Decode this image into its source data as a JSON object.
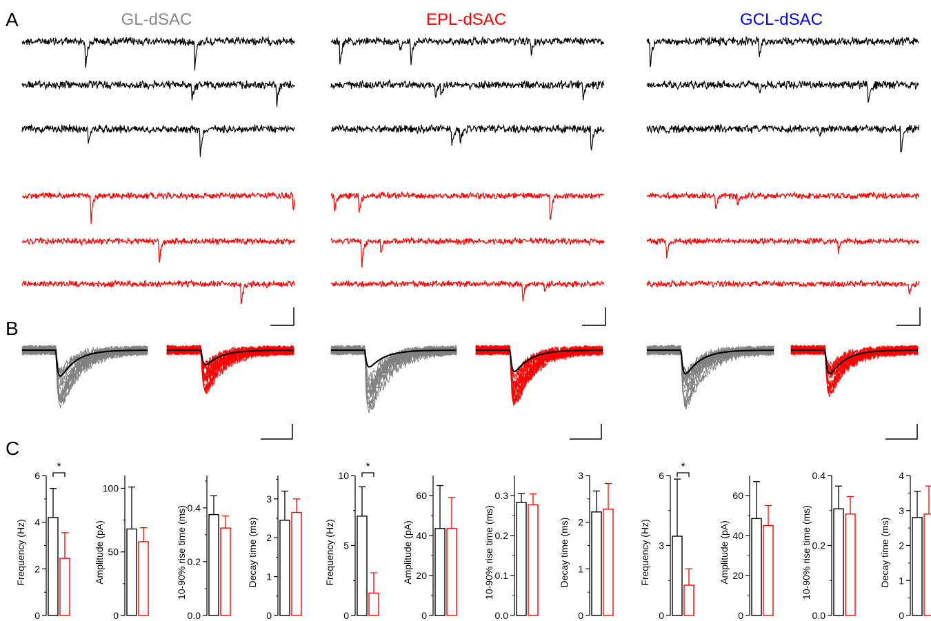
{
  "panels": {
    "a": "A",
    "b": "B",
    "c": "C"
  },
  "colors": {
    "control": "#000000",
    "treated": "#ff0000",
    "overlay": "#808080"
  },
  "columns": [
    {
      "title": "GL-dSAC",
      "title_color": "#888888",
      "events_black": [
        [
          0.23,
          1.0
        ],
        [
          0.63,
          0.95
        ],
        [
          0.08,
          0.0
        ],
        [
          0.62,
          0.55
        ],
        [
          0.93,
          0.75
        ],
        [
          0.24,
          0.55
        ],
        [
          0.65,
          1.0
        ]
      ],
      "events_red": [
        [
          0.99,
          0.5
        ],
        [
          0.25,
          0.9
        ],
        [
          0.5,
          0.4
        ],
        [
          0.5,
          0.4
        ],
        [
          0.8,
          0.8
        ]
      ]
    },
    {
      "title": "EPL-dSAC",
      "title_color": "#ff0000",
      "events_black": [
        [
          0.03,
          1.0
        ],
        [
          0.25,
          0.4
        ],
        [
          0.73,
          0.5
        ],
        [
          0.29,
          0.9
        ],
        [
          0.4,
          0.4
        ],
        [
          0.92,
          0.6
        ],
        [
          0.38,
          0.5
        ],
        [
          0.44,
          0.6
        ],
        [
          0.47,
          0.6
        ],
        [
          0.95,
          1.0
        ]
      ],
      "events_red": [
        [
          0.8,
          1.0
        ],
        [
          0.01,
          0.6
        ],
        [
          0.1,
          0.7
        ],
        [
          0.18,
          0.5
        ],
        [
          0.11,
          1.0
        ],
        [
          0.7,
          0.6
        ],
        [
          0.78,
          0.3
        ]
      ]
    },
    {
      "title": "GCL-dSAC",
      "title_color": "#0000ff",
      "events_black": [
        [
          0.01,
          1.0
        ],
        [
          0.41,
          0.5
        ],
        [
          0.81,
          0.8
        ],
        [
          0.41,
          0.3
        ],
        [
          0.93,
          1.0
        ],
        [
          0.63,
          0.3
        ]
      ],
      "events_red": [
        [
          0.25,
          0.6
        ],
        [
          0.33,
          0.4
        ],
        [
          0.07,
          0.6
        ],
        [
          0.7,
          0.4
        ],
        [
          0.96,
          0.4
        ]
      ]
    }
  ],
  "chart_data": [
    {
      "type": "bar",
      "ylabel": "Frequency (Hz)",
      "yticks": [
        0,
        2,
        4,
        6
      ],
      "ylim": [
        0,
        6
      ],
      "values": [
        4.2,
        2.45
      ],
      "errors": [
        1.25,
        1.1
      ],
      "significance": "*"
    },
    {
      "type": "bar",
      "ylabel": "Amplitude (pA)",
      "yticks": [
        0,
        50,
        100
      ],
      "ylim": [
        0,
        110
      ],
      "values": [
        68,
        58
      ],
      "errors": [
        33,
        11
      ],
      "significance": ""
    },
    {
      "type": "bar",
      "ylabel": "10-90% rise time (ms)",
      "yticks": [
        0.0,
        0.2,
        0.4
      ],
      "ylim": [
        0,
        0.52
      ],
      "values": [
        0.375,
        0.325
      ],
      "errors": [
        0.07,
        0.045
      ],
      "significance": ""
    },
    {
      "type": "bar",
      "ylabel": "Decay time (ms)",
      "yticks": [
        0,
        1,
        2,
        3
      ],
      "ylim": [
        0,
        3.6
      ],
      "values": [
        2.45,
        2.65
      ],
      "errors": [
        0.75,
        0.35
      ],
      "significance": ""
    },
    {
      "type": "bar",
      "ylabel": "Frequency (Hz)",
      "yticks": [
        0,
        5,
        10
      ],
      "ylim": [
        0,
        10
      ],
      "values": [
        7.1,
        1.6
      ],
      "errors": [
        2.1,
        1.45
      ],
      "significance": "*"
    },
    {
      "type": "bar",
      "ylabel": "Amplitude (pA)",
      "yticks": [
        0,
        20,
        40,
        60
      ],
      "ylim": [
        0,
        70
      ],
      "values": [
        43.5,
        43.5
      ],
      "errors": [
        21.5,
        15.5
      ],
      "significance": ""
    },
    {
      "type": "bar",
      "ylabel": "10-90% rise time (ms)",
      "yticks": [
        0.0,
        0.1,
        0.2,
        0.3
      ],
      "ylim": [
        0,
        0.35
      ],
      "values": [
        0.283,
        0.277
      ],
      "errors": [
        0.022,
        0.027
      ],
      "significance": ""
    },
    {
      "type": "bar",
      "ylabel": "Decay time (ms)",
      "yticks": [
        0,
        1,
        2,
        3
      ],
      "ylim": [
        0,
        3
      ],
      "values": [
        2.22,
        2.28
      ],
      "errors": [
        0.45,
        0.55
      ],
      "significance": ""
    },
    {
      "type": "bar",
      "ylabel": "Frequency (Hz)",
      "yticks": [
        0,
        3,
        6
      ],
      "ylim": [
        0,
        6
      ],
      "values": [
        3.4,
        1.3
      ],
      "errors": [
        2.45,
        0.7
      ],
      "significance": "*"
    },
    {
      "type": "bar",
      "ylabel": "Amplitude (pA)",
      "yticks": [
        0,
        20,
        40,
        60
      ],
      "ylim": [
        0,
        70
      ],
      "values": [
        48.5,
        45
      ],
      "errors": [
        18.5,
        10
      ],
      "significance": ""
    },
    {
      "type": "bar",
      "ylabel": "10-90% rise time (ms)",
      "yticks": [
        0.0,
        0.2,
        0.4
      ],
      "ylim": [
        0,
        0.4
      ],
      "values": [
        0.305,
        0.29
      ],
      "errors": [
        0.065,
        0.05
      ],
      "significance": ""
    },
    {
      "type": "bar",
      "ylabel": "Decay time (ms)",
      "yticks": [
        0,
        1,
        2,
        3,
        4
      ],
      "ylim": [
        0,
        4
      ],
      "values": [
        2.8,
        2.9
      ],
      "errors": [
        0.75,
        0.8
      ],
      "significance": ""
    }
  ]
}
